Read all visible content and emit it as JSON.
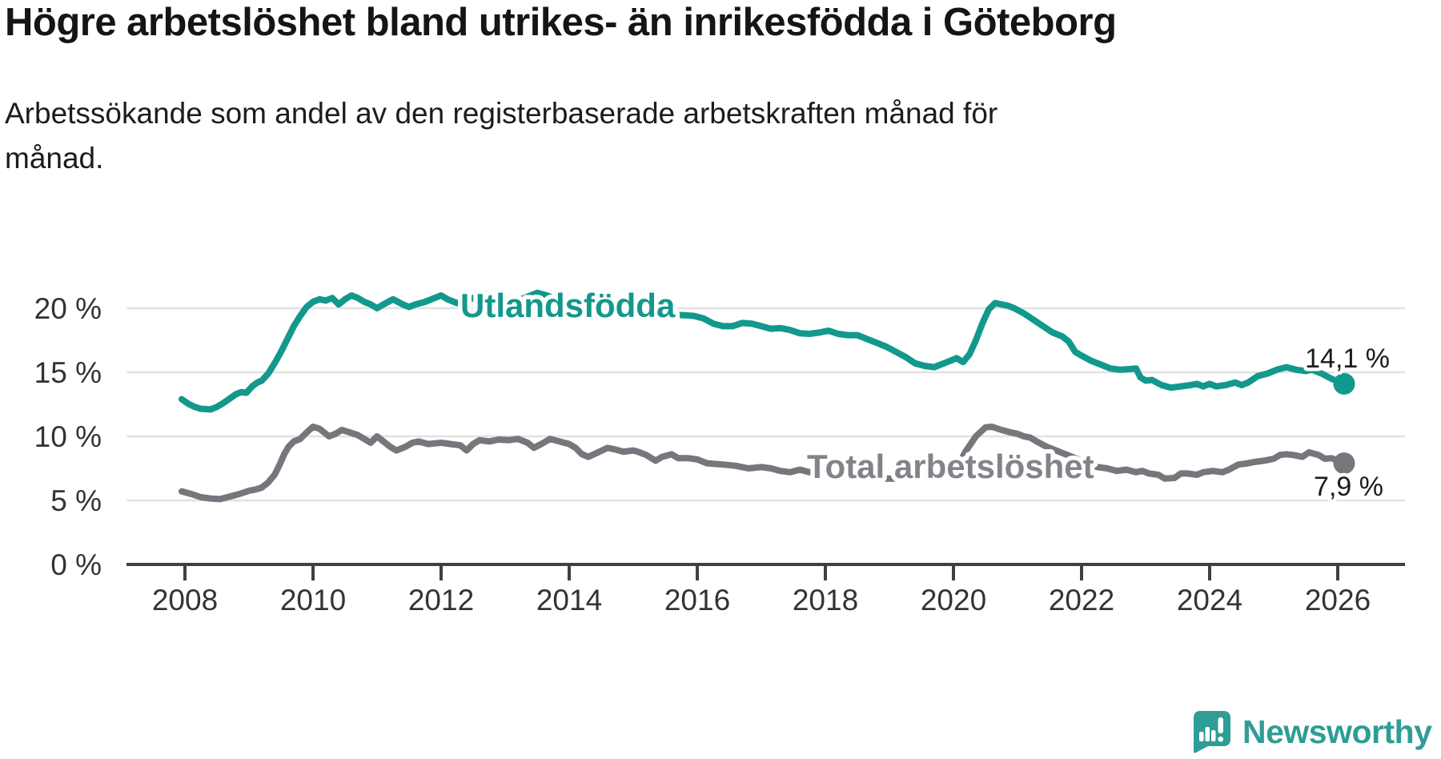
{
  "title": "Högre arbetslöshet bland utrikes- än inrikesfödda i Göteborg",
  "subtitle": "Arbetssökande som andel av den registerbaserade arbetskraften månad för\nmånad.",
  "chart_data": {
    "type": "line",
    "unit": "%",
    "grid": true,
    "legend_position": "inline-on-line",
    "x_axis": {
      "min": 2007.9,
      "max": 2026.3,
      "ticks": [
        2008,
        2010,
        2012,
        2014,
        2016,
        2018,
        2020,
        2022,
        2024,
        2026
      ],
      "tick_labels": [
        "2008",
        "2010",
        "2012",
        "2014",
        "2016",
        "2018",
        "2020",
        "2022",
        "2024",
        "2026"
      ]
    },
    "y_axis": {
      "min": 0,
      "max": 22,
      "ticks": [
        {
          "value": 20,
          "label": "20 %"
        },
        {
          "value": 15,
          "label": "15 %"
        },
        {
          "value": 10,
          "label": "10 %"
        },
        {
          "value": 5,
          "label": "5 %"
        },
        {
          "value": 0,
          "label": "0 %"
        }
      ]
    },
    "series": [
      {
        "name": "Utlandsfödda",
        "line_label": "Utlandsfödda",
        "color": "#12988C",
        "label_color": "#12988C",
        "end_label": "14,1 %",
        "end_value": 14.1,
        "points": [
          [
            2007.95,
            12.9
          ],
          [
            2008.05,
            12.55
          ],
          [
            2008.15,
            12.3
          ],
          [
            2008.25,
            12.15
          ],
          [
            2008.4,
            12.1
          ],
          [
            2008.5,
            12.3
          ],
          [
            2008.6,
            12.6
          ],
          [
            2008.7,
            12.95
          ],
          [
            2008.8,
            13.3
          ],
          [
            2008.88,
            13.45
          ],
          [
            2008.96,
            13.4
          ],
          [
            2009.05,
            13.9
          ],
          [
            2009.13,
            14.2
          ],
          [
            2009.2,
            14.35
          ],
          [
            2009.3,
            14.9
          ],
          [
            2009.4,
            15.7
          ],
          [
            2009.5,
            16.6
          ],
          [
            2009.6,
            17.6
          ],
          [
            2009.7,
            18.6
          ],
          [
            2009.8,
            19.4
          ],
          [
            2009.9,
            20.1
          ],
          [
            2010.0,
            20.5
          ],
          [
            2010.1,
            20.7
          ],
          [
            2010.2,
            20.6
          ],
          [
            2010.3,
            20.8
          ],
          [
            2010.4,
            20.3
          ],
          [
            2010.5,
            20.7
          ],
          [
            2010.6,
            21.0
          ],
          [
            2010.7,
            20.8
          ],
          [
            2010.8,
            20.5
          ],
          [
            2010.9,
            20.3
          ],
          [
            2011.0,
            20.0
          ],
          [
            2011.1,
            20.3
          ],
          [
            2011.25,
            20.7
          ],
          [
            2011.4,
            20.3
          ],
          [
            2011.5,
            20.1
          ],
          [
            2011.6,
            20.3
          ],
          [
            2011.75,
            20.5
          ],
          [
            2011.9,
            20.8
          ],
          [
            2012.0,
            21.0
          ],
          [
            2012.1,
            20.7
          ],
          [
            2012.25,
            20.4
          ],
          [
            2012.4,
            20.6
          ],
          [
            2012.55,
            20.9
          ],
          [
            2012.7,
            21.1
          ],
          [
            2012.85,
            20.6
          ],
          [
            2013.0,
            20.2
          ],
          [
            2013.15,
            20.5
          ],
          [
            2013.3,
            20.8
          ],
          [
            2013.5,
            21.2
          ],
          [
            2013.65,
            21.0
          ],
          [
            2013.8,
            20.7
          ],
          [
            2014.0,
            20.4
          ],
          [
            2014.2,
            20.3
          ],
          [
            2014.4,
            20.2
          ],
          [
            2014.6,
            20.1
          ],
          [
            2014.8,
            20.0
          ],
          [
            2015.0,
            19.9
          ],
          [
            2015.2,
            19.8
          ],
          [
            2015.4,
            19.7
          ],
          [
            2015.6,
            19.5
          ],
          [
            2015.8,
            19.45
          ],
          [
            2015.95,
            19.4
          ],
          [
            2016.1,
            19.2
          ],
          [
            2016.25,
            18.8
          ],
          [
            2016.4,
            18.6
          ],
          [
            2016.55,
            18.6
          ],
          [
            2016.7,
            18.85
          ],
          [
            2016.85,
            18.8
          ],
          [
            2017.0,
            18.6
          ],
          [
            2017.15,
            18.4
          ],
          [
            2017.3,
            18.45
          ],
          [
            2017.45,
            18.3
          ],
          [
            2017.6,
            18.05
          ],
          [
            2017.75,
            18.0
          ],
          [
            2017.9,
            18.1
          ],
          [
            2018.05,
            18.25
          ],
          [
            2018.2,
            18.0
          ],
          [
            2018.35,
            17.9
          ],
          [
            2018.5,
            17.9
          ],
          [
            2018.65,
            17.6
          ],
          [
            2018.8,
            17.3
          ],
          [
            2018.95,
            17.0
          ],
          [
            2019.1,
            16.6
          ],
          [
            2019.25,
            16.2
          ],
          [
            2019.4,
            15.7
          ],
          [
            2019.55,
            15.5
          ],
          [
            2019.7,
            15.4
          ],
          [
            2019.85,
            15.7
          ],
          [
            2019.95,
            15.9
          ],
          [
            2020.05,
            16.1
          ],
          [
            2020.15,
            15.8
          ],
          [
            2020.25,
            16.4
          ],
          [
            2020.35,
            17.5
          ],
          [
            2020.45,
            18.8
          ],
          [
            2020.55,
            19.9
          ],
          [
            2020.65,
            20.4
          ],
          [
            2020.75,
            20.3
          ],
          [
            2020.85,
            20.2
          ],
          [
            2020.95,
            20.0
          ],
          [
            2021.1,
            19.6
          ],
          [
            2021.25,
            19.1
          ],
          [
            2021.4,
            18.6
          ],
          [
            2021.55,
            18.1
          ],
          [
            2021.7,
            17.8
          ],
          [
            2021.8,
            17.4
          ],
          [
            2021.9,
            16.6
          ],
          [
            2022.0,
            16.3
          ],
          [
            2022.15,
            15.9
          ],
          [
            2022.3,
            15.6
          ],
          [
            2022.45,
            15.3
          ],
          [
            2022.6,
            15.2
          ],
          [
            2022.75,
            15.25
          ],
          [
            2022.85,
            15.3
          ],
          [
            2022.92,
            14.6
          ],
          [
            2023.0,
            14.35
          ],
          [
            2023.1,
            14.4
          ],
          [
            2023.25,
            14.0
          ],
          [
            2023.4,
            13.8
          ],
          [
            2023.55,
            13.9
          ],
          [
            2023.7,
            14.0
          ],
          [
            2023.8,
            14.1
          ],
          [
            2023.9,
            13.9
          ],
          [
            2024.0,
            14.1
          ],
          [
            2024.1,
            13.9
          ],
          [
            2024.25,
            14.0
          ],
          [
            2024.4,
            14.2
          ],
          [
            2024.5,
            14.0
          ],
          [
            2024.6,
            14.2
          ],
          [
            2024.75,
            14.7
          ],
          [
            2024.9,
            14.9
          ],
          [
            2025.05,
            15.2
          ],
          [
            2025.2,
            15.4
          ],
          [
            2025.35,
            15.2
          ],
          [
            2025.5,
            15.1
          ],
          [
            2025.6,
            15.2
          ],
          [
            2025.75,
            14.9
          ],
          [
            2025.9,
            14.5
          ],
          [
            2026.0,
            14.3
          ],
          [
            2026.1,
            14.1
          ]
        ]
      },
      {
        "name": "Total arbetslöshet",
        "line_label": "Total arbetslöshet",
        "color": "#76767C",
        "label_color": "#83838A",
        "end_label": "7,9 %",
        "end_value": 7.9,
        "points": [
          [
            2007.95,
            5.7
          ],
          [
            2008.1,
            5.5
          ],
          [
            2008.25,
            5.25
          ],
          [
            2008.4,
            5.15
          ],
          [
            2008.55,
            5.1
          ],
          [
            2008.7,
            5.3
          ],
          [
            2008.85,
            5.5
          ],
          [
            2009.0,
            5.75
          ],
          [
            2009.1,
            5.85
          ],
          [
            2009.2,
            6.0
          ],
          [
            2009.3,
            6.4
          ],
          [
            2009.4,
            7.0
          ],
          [
            2009.48,
            7.8
          ],
          [
            2009.55,
            8.6
          ],
          [
            2009.62,
            9.2
          ],
          [
            2009.7,
            9.6
          ],
          [
            2009.8,
            9.8
          ],
          [
            2009.9,
            10.3
          ],
          [
            2010.0,
            10.75
          ],
          [
            2010.1,
            10.6
          ],
          [
            2010.25,
            10.0
          ],
          [
            2010.35,
            10.2
          ],
          [
            2010.45,
            10.5
          ],
          [
            2010.55,
            10.35
          ],
          [
            2010.7,
            10.1
          ],
          [
            2010.8,
            9.8
          ],
          [
            2010.9,
            9.5
          ],
          [
            2011.0,
            10.0
          ],
          [
            2011.1,
            9.6
          ],
          [
            2011.2,
            9.2
          ],
          [
            2011.3,
            8.9
          ],
          [
            2011.45,
            9.2
          ],
          [
            2011.55,
            9.5
          ],
          [
            2011.65,
            9.6
          ],
          [
            2011.8,
            9.4
          ],
          [
            2011.9,
            9.45
          ],
          [
            2012.0,
            9.5
          ],
          [
            2012.15,
            9.4
          ],
          [
            2012.3,
            9.3
          ],
          [
            2012.4,
            8.9
          ],
          [
            2012.5,
            9.4
          ],
          [
            2012.6,
            9.7
          ],
          [
            2012.75,
            9.6
          ],
          [
            2012.9,
            9.75
          ],
          [
            2013.05,
            9.7
          ],
          [
            2013.2,
            9.8
          ],
          [
            2013.35,
            9.5
          ],
          [
            2013.45,
            9.1
          ],
          [
            2013.6,
            9.5
          ],
          [
            2013.7,
            9.8
          ],
          [
            2013.85,
            9.6
          ],
          [
            2014.0,
            9.4
          ],
          [
            2014.1,
            9.1
          ],
          [
            2014.2,
            8.6
          ],
          [
            2014.3,
            8.4
          ],
          [
            2014.45,
            8.75
          ],
          [
            2014.6,
            9.1
          ],
          [
            2014.7,
            9.0
          ],
          [
            2014.85,
            8.8
          ],
          [
            2015.0,
            8.9
          ],
          [
            2015.1,
            8.75
          ],
          [
            2015.2,
            8.55
          ],
          [
            2015.35,
            8.1
          ],
          [
            2015.45,
            8.4
          ],
          [
            2015.6,
            8.6
          ],
          [
            2015.7,
            8.3
          ],
          [
            2015.85,
            8.3
          ],
          [
            2016.0,
            8.2
          ],
          [
            2016.15,
            7.9
          ],
          [
            2016.4,
            7.8
          ],
          [
            2016.6,
            7.7
          ],
          [
            2016.8,
            7.5
          ],
          [
            2017.0,
            7.6
          ],
          [
            2017.15,
            7.5
          ],
          [
            2017.3,
            7.3
          ],
          [
            2017.45,
            7.2
          ],
          [
            2017.6,
            7.4
          ],
          [
            2017.75,
            7.2
          ],
          [
            2017.9,
            7.1
          ],
          [
            2018.1,
            7.0
          ],
          [
            2018.35,
            6.9
          ],
          [
            2018.6,
            6.8
          ],
          [
            2018.85,
            6.7
          ],
          [
            2019.1,
            6.7
          ],
          [
            2019.35,
            6.8
          ],
          [
            2019.55,
            6.9
          ],
          [
            2019.75,
            7.1
          ],
          [
            2019.95,
            7.4
          ],
          [
            2020.1,
            8.0
          ],
          [
            2020.2,
            8.9
          ],
          [
            2020.35,
            10.0
          ],
          [
            2020.5,
            10.7
          ],
          [
            2020.6,
            10.75
          ],
          [
            2020.75,
            10.5
          ],
          [
            2020.9,
            10.3
          ],
          [
            2021.0,
            10.2
          ],
          [
            2021.1,
            10.0
          ],
          [
            2021.2,
            9.9
          ],
          [
            2021.3,
            9.6
          ],
          [
            2021.45,
            9.2
          ],
          [
            2021.55,
            9.0
          ],
          [
            2021.65,
            8.8
          ],
          [
            2021.8,
            8.5
          ],
          [
            2021.95,
            8.2
          ],
          [
            2022.1,
            7.9
          ],
          [
            2022.25,
            7.6
          ],
          [
            2022.4,
            7.5
          ],
          [
            2022.55,
            7.3
          ],
          [
            2022.7,
            7.4
          ],
          [
            2022.85,
            7.2
          ],
          [
            2022.95,
            7.3
          ],
          [
            2023.05,
            7.1
          ],
          [
            2023.2,
            7.0
          ],
          [
            2023.3,
            6.7
          ],
          [
            2023.45,
            6.75
          ],
          [
            2023.55,
            7.1
          ],
          [
            2023.65,
            7.1
          ],
          [
            2023.8,
            7.0
          ],
          [
            2023.9,
            7.2
          ],
          [
            2024.05,
            7.3
          ],
          [
            2024.2,
            7.2
          ],
          [
            2024.3,
            7.4
          ],
          [
            2024.45,
            7.8
          ],
          [
            2024.6,
            7.9
          ],
          [
            2024.7,
            8.0
          ],
          [
            2024.85,
            8.1
          ],
          [
            2025.0,
            8.25
          ],
          [
            2025.1,
            8.55
          ],
          [
            2025.2,
            8.6
          ],
          [
            2025.3,
            8.55
          ],
          [
            2025.45,
            8.4
          ],
          [
            2025.55,
            8.75
          ],
          [
            2025.7,
            8.55
          ],
          [
            2025.8,
            8.25
          ],
          [
            2025.9,
            8.3
          ],
          [
            2026.0,
            8.1
          ],
          [
            2026.1,
            7.9
          ]
        ]
      }
    ]
  },
  "colors": {
    "grid": "#E2E2E2",
    "axis": "#404040",
    "tick_text": "#333333",
    "value_text": "#1B1B1B",
    "background": "#FFFFFF"
  },
  "branding": {
    "logo_text": "Newsworthy",
    "logo_color": "#2F9D96",
    "logo_icon": "newsworthy-badge-icon"
  }
}
